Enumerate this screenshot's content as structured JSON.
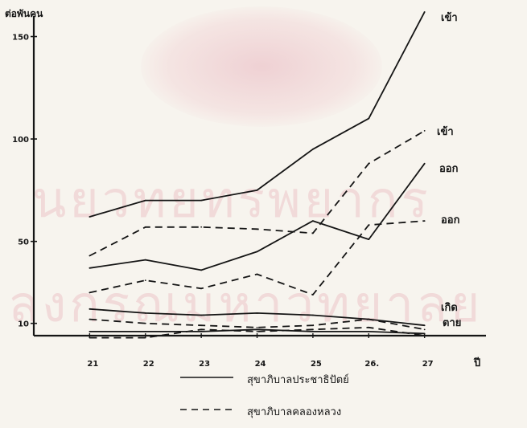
{
  "chart_data": {
    "type": "line",
    "ylabel": "ต่อพันคน",
    "xunit": "ปี",
    "x": [
      21,
      22,
      23,
      24,
      25,
      26,
      27
    ],
    "x_tick_labels": [
      "21",
      "22",
      "23",
      "24",
      "25",
      "26.",
      "27"
    ],
    "y_ticks": [
      10,
      50,
      100,
      150
    ],
    "y_tick_labels": [
      "10",
      "50",
      "100",
      "150"
    ],
    "ylim": [
      4,
      160
    ],
    "xlim": [
      20,
      28.1
    ],
    "grid": false,
    "legend_position": "bottom",
    "series": [
      {
        "name": "เข้า",
        "style": "solid",
        "values": [
          62,
          70,
          70,
          75,
          95,
          110,
          162
        ]
      },
      {
        "name": "เข้า",
        "style": "dashed",
        "values": [
          43,
          57,
          57,
          56,
          54,
          88,
          104
        ]
      },
      {
        "name": "ออก",
        "style": "solid",
        "values": [
          37,
          41,
          36,
          45,
          60,
          51,
          88
        ]
      },
      {
        "name": "ออก",
        "style": "dashed",
        "values": [
          25,
          31,
          27,
          34,
          24,
          58,
          60
        ]
      },
      {
        "name": "เกิด",
        "style": "solid",
        "values": [
          17,
          15,
          14,
          15,
          14,
          12,
          9
        ]
      },
      {
        "name": "เกิด",
        "style": "dashed",
        "values": [
          12,
          10,
          9,
          8,
          9,
          12,
          7
        ]
      },
      {
        "name": "ตาย",
        "style": "solid",
        "values": [
          6,
          6,
          6,
          7,
          6,
          6,
          5
        ]
      },
      {
        "name": "ตาย",
        "style": "dashed",
        "values": [
          3,
          3,
          7,
          6,
          7,
          8,
          4
        ]
      }
    ],
    "annotations": [
      "เข้า",
      "เข้า",
      "ออก",
      "ออก",
      "เกิด",
      "ตาย"
    ]
  },
  "legend": {
    "solid_label": "สุขาภิบาลประชาธิปัตย์",
    "dashed_label": "สุขาภิบาลคลองหลวง"
  },
  "watermark": {
    "line1": "นยวทยทรพยากร",
    "line2": "ลงกรณมหาวทยาลย"
  },
  "colors": {
    "ink": "#151515",
    "paper": "#f7f4ee",
    "watermark": "#e296a5"
  }
}
